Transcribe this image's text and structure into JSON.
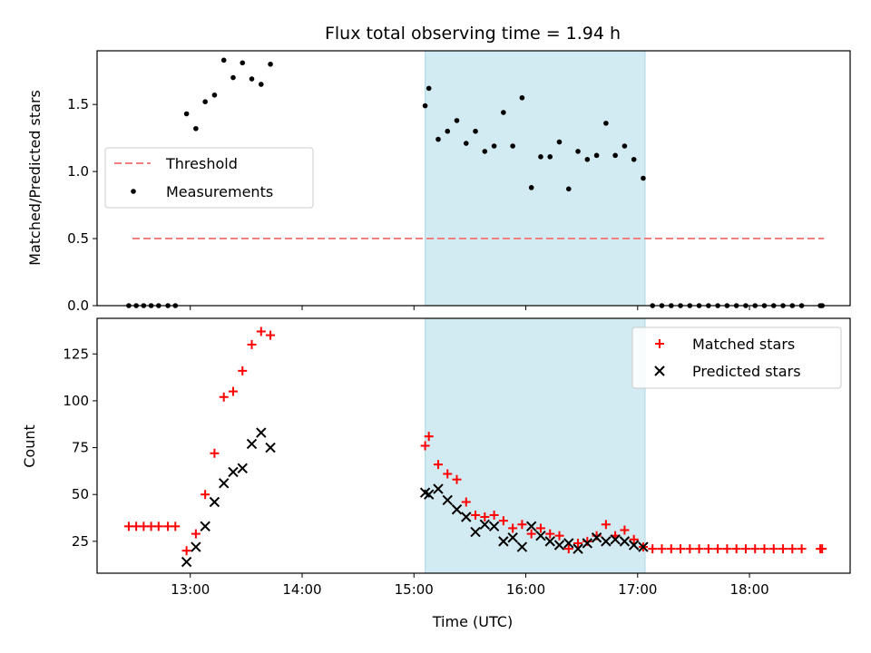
{
  "chart_data": [
    {
      "type": "scatter",
      "title": "Flux total observing time = 1.94 h",
      "xlabel": "",
      "ylabel": "Matched/Predicted stars",
      "xlim": [
        "12:10",
        "18:54"
      ],
      "ylim": [
        0,
        1.9
      ],
      "yticks": [
        0.0,
        0.5,
        1.0,
        1.5
      ],
      "ytick_labels": [
        "0.0",
        "0.5",
        "1.0",
        "1.5"
      ],
      "shaded_span": [
        "15:06",
        "17:04"
      ],
      "shaded_color": "#add8e6",
      "legend": "center-left",
      "series": [
        {
          "name": "Threshold",
          "kind": "dashed-line",
          "color": "#f08080",
          "x": [
            "12:29",
            "18:40"
          ],
          "y": [
            0.5,
            0.5
          ]
        },
        {
          "name": "Measurements",
          "kind": "dots",
          "color": "#000000",
          "x": [
            "12:27",
            "12:31",
            "12:35",
            "12:39",
            "12:43",
            "12:48",
            "12:52",
            "12:58",
            "13:03",
            "13:08",
            "13:13",
            "13:18",
            "13:23",
            "13:28",
            "13:33",
            "13:38",
            "13:43",
            "15:06",
            "15:08",
            "15:13",
            "15:18",
            "15:23",
            "15:28",
            "15:33",
            "15:38",
            "15:43",
            "15:48",
            "15:53",
            "15:58",
            "16:03",
            "16:08",
            "16:13",
            "16:18",
            "16:23",
            "16:28",
            "16:33",
            "16:38",
            "16:43",
            "16:48",
            "16:53",
            "16:58",
            "17:03",
            "17:08",
            "17:13",
            "17:18",
            "17:23",
            "17:28",
            "17:33",
            "17:38",
            "17:43",
            "17:48",
            "17:53",
            "17:58",
            "18:03",
            "18:08",
            "18:13",
            "18:18",
            "18:23",
            "18:28",
            "18:38",
            "18:39"
          ],
          "y": [
            0,
            0,
            0,
            0,
            0,
            0,
            0,
            1.43,
            1.32,
            1.52,
            1.57,
            1.83,
            1.7,
            1.81,
            1.69,
            1.65,
            1.8,
            1.49,
            1.62,
            1.24,
            1.3,
            1.38,
            1.21,
            1.3,
            1.15,
            1.19,
            1.44,
            1.19,
            1.55,
            0.88,
            1.11,
            1.11,
            1.22,
            0.87,
            1.15,
            1.09,
            1.12,
            1.36,
            1.12,
            1.19,
            1.09,
            0.95,
            0,
            0,
            0,
            0,
            0,
            0,
            0,
            0,
            0,
            0,
            0,
            0,
            0,
            0,
            0,
            0,
            0,
            0,
            0
          ]
        }
      ]
    },
    {
      "type": "scatter",
      "title": "",
      "xlabel": "Time (UTC)",
      "ylabel": "Count",
      "xlim": [
        "12:10",
        "18:54"
      ],
      "ylim": [
        8,
        144
      ],
      "xticks": [
        "13:00",
        "14:00",
        "15:00",
        "16:00",
        "17:00",
        "18:00"
      ],
      "xtick_labels": [
        "13:00",
        "14:00",
        "15:00",
        "16:00",
        "17:00",
        "18:00"
      ],
      "yticks": [
        25,
        50,
        75,
        100,
        125
      ],
      "ytick_labels": [
        "25",
        "50",
        "75",
        "100",
        "125"
      ],
      "shaded_span": [
        "15:06",
        "17:04"
      ],
      "shaded_color": "#add8e6",
      "legend": "top-right",
      "series": [
        {
          "name": "Matched stars",
          "marker": "+",
          "color": "#ff0000",
          "x": [
            "12:27",
            "12:31",
            "12:35",
            "12:39",
            "12:43",
            "12:48",
            "12:52",
            "12:58",
            "13:03",
            "13:08",
            "13:13",
            "13:18",
            "13:23",
            "13:28",
            "13:33",
            "13:38",
            "13:43",
            "15:06",
            "15:08",
            "15:13",
            "15:18",
            "15:23",
            "15:28",
            "15:33",
            "15:38",
            "15:43",
            "15:48",
            "15:53",
            "15:58",
            "16:03",
            "16:08",
            "16:13",
            "16:18",
            "16:23",
            "16:28",
            "16:33",
            "16:38",
            "16:43",
            "16:48",
            "16:53",
            "16:58",
            "17:03",
            "17:08",
            "17:13",
            "17:18",
            "17:23",
            "17:28",
            "17:33",
            "17:38",
            "17:43",
            "17:48",
            "17:53",
            "17:58",
            "18:03",
            "18:08",
            "18:13",
            "18:18",
            "18:23",
            "18:28",
            "18:38",
            "18:39"
          ],
          "y": [
            33,
            33,
            33,
            33,
            33,
            33,
            33,
            20,
            29,
            50,
            72,
            102,
            105,
            116,
            130,
            137,
            135,
            76,
            81,
            66,
            61,
            58,
            46,
            39,
            38,
            39,
            36,
            32,
            34,
            29,
            32,
            29,
            28,
            21,
            24,
            25,
            28,
            34,
            28,
            31,
            26,
            22,
            21,
            21,
            21,
            21,
            21,
            21,
            21,
            21,
            21,
            21,
            21,
            21,
            21,
            21,
            21,
            21,
            21,
            21,
            21
          ]
        },
        {
          "name": "Predicted stars",
          "marker": "x",
          "color": "#000000",
          "x": [
            "12:58",
            "13:03",
            "13:08",
            "13:13",
            "13:18",
            "13:23",
            "13:28",
            "13:33",
            "13:38",
            "13:43",
            "15:06",
            "15:08",
            "15:13",
            "15:18",
            "15:23",
            "15:28",
            "15:33",
            "15:38",
            "15:43",
            "15:48",
            "15:53",
            "15:58",
            "16:03",
            "16:08",
            "16:13",
            "16:18",
            "16:23",
            "16:28",
            "16:33",
            "16:38",
            "16:43",
            "16:48",
            "16:53",
            "16:58",
            "17:03"
          ],
          "y": [
            14,
            22,
            33,
            46,
            56,
            62,
            64,
            77,
            83,
            75,
            51,
            50,
            53,
            47,
            42,
            38,
            30,
            34,
            33,
            25,
            27,
            22,
            33,
            28,
            25,
            23,
            24,
            21,
            24,
            27,
            25,
            26,
            25,
            23,
            22
          ]
        }
      ]
    }
  ]
}
